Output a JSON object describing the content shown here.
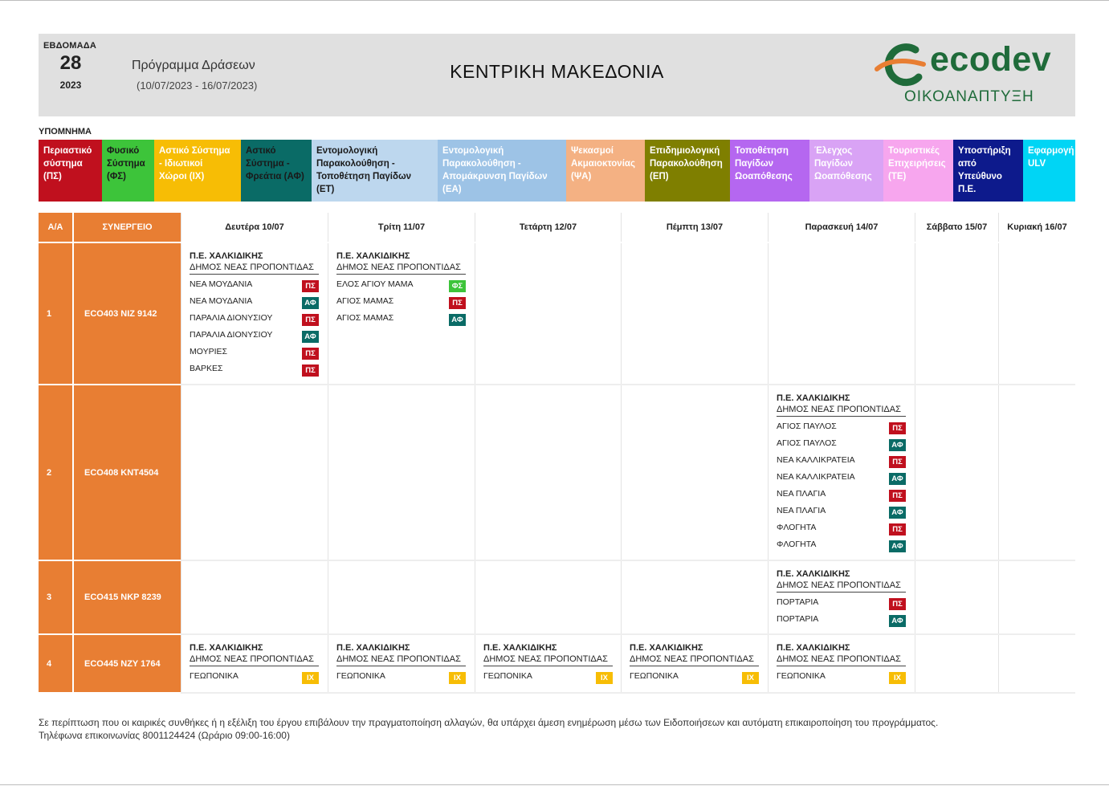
{
  "header": {
    "week_label": "ΕΒΔΟΜΑΔΑ",
    "week_number": "28",
    "year": "2023",
    "program_title": "Πρόγραμμα Δράσεων",
    "program_dates": "(10/07/2023 - 16/07/2023)",
    "region": "ΚΕΝΤΡΙΚΗ ΜΑΚΕΔΟΝΙΑ",
    "logo_text": "ecodev",
    "logo_subtitle": "ΟΙΚΟΑΝΑΠΤΥΞΗ",
    "logo_colors": {
      "green": "#1f6b3a",
      "orange": "#e87e33"
    }
  },
  "legend": {
    "title": "ΥΠΟΜΝΗΜΑ",
    "items": [
      {
        "lines": [
          "Περιαστικό",
          "σύστημα",
          "(ΠΣ)"
        ],
        "color": "#c0101e",
        "text_color": "#ffffff"
      },
      {
        "lines": [
          "Φυσικό",
          "Σύστημα",
          "(ΦΣ)"
        ],
        "color": "#3dc43a",
        "text_color": "#1a1a1a"
      },
      {
        "lines": [
          "Αστικό Σύστημα",
          "- Ιδιωτικοί",
          "Χώροι (ΙΧ)"
        ],
        "color": "#f7bd05",
        "text_color": "#ffffff"
      },
      {
        "lines": [
          "Αστικό",
          "Σύστημα -",
          "Φρεάτια (ΑΦ)"
        ],
        "color": "#0a6b66",
        "text_color": "#1a1a1a"
      },
      {
        "lines": [
          "Εντομολογική",
          "Παρακολούθηση -",
          "Τοποθέτηση Παγίδων",
          "(ΕΤ)"
        ],
        "color": "#bdd7ee",
        "text_color": "#1a1a1a"
      },
      {
        "lines": [
          "Εντομολογική",
          "Παρακολούθηση -",
          "Απομάκρυνση Παγίδων",
          "(ΕΑ)"
        ],
        "color": "#9dc3e6",
        "text_color": "#ffffff"
      },
      {
        "lines": [
          "Ψεκασμοί",
          "Ακμαιοκτονίας",
          "(ΨΑ)"
        ],
        "color": "#f4b183",
        "text_color": "#ffffff"
      },
      {
        "lines": [
          "Επιδημιολογική",
          "Παρακολούθηση",
          "(ΕΠ)"
        ],
        "color": "#7f7f00",
        "text_color": "#ffffff"
      },
      {
        "lines": [
          "Τοποθέτηση",
          "Παγίδων",
          "Ωοαπόθεσης"
        ],
        "color": "#b567f0",
        "text_color": "#ffffff"
      },
      {
        "lines": [
          "Έλεγχος",
          "Παγίδων",
          "Ωοαπόθεσης"
        ],
        "color": "#d9a3f5",
        "text_color": "#ffffff"
      },
      {
        "lines": [
          "Τουριστικές",
          "Επιχειρήσεις",
          "(ΤΕ)"
        ],
        "color": "#f7a6ee",
        "text_color": "#ffffff"
      },
      {
        "lines": [
          "Υποστήριξη",
          "από",
          "Υπεύθυνο",
          "Π.Ε."
        ],
        "color": "#0d1a8c",
        "text_color": "#ffffff"
      },
      {
        "lines": [
          "Εφαρμογή",
          "ULV"
        ],
        "color": "#00d5f5",
        "text_color": "#ffffff"
      }
    ]
  },
  "tag_colors": {
    "ΠΣ": "#c0101e",
    "ΑΦ": "#0a6b66",
    "ΦΣ": "#3dc43a",
    "ΙΧ": "#f7bd05"
  },
  "columns": {
    "aa": "Α/Α",
    "crew": "ΣΥΝΕΡΓΕΙΟ",
    "days": [
      "Δευτέρα 10/07",
      "Τρίτη 11/07",
      "Τετάρτη 12/07",
      "Πέμπτη 13/07",
      "Παρασκευή 14/07",
      "Σάββατο 15/07",
      "Κυριακή 16/07"
    ]
  },
  "rows": [
    {
      "aa": "1",
      "crew": "ECO403  NIZ 9142",
      "cells": [
        {
          "pe": "Π.Ε. ΧΑΛΚΙΔΙΚΗΣ",
          "dimos": "ΔΗΜΟΣ ΝΕΑΣ ΠΡΟΠΟΝΤΙΔΑΣ",
          "entries": [
            {
              "name": "ΝΕΑ ΜΟΥΔΑΝΙΑ",
              "tag": "ΠΣ"
            },
            {
              "name": "ΝΕΑ ΜΟΥΔΑΝΙΑ",
              "tag": "ΑΦ"
            },
            {
              "name": "ΠΑΡΑΛΙΑ ΔΙΟΝΥΣΙΟΥ",
              "tag": "ΠΣ"
            },
            {
              "name": "ΠΑΡΑΛΙΑ ΔΙΟΝΥΣΙΟΥ",
              "tag": "ΑΦ"
            },
            {
              "name": "ΜΟΥΡΙΕΣ",
              "tag": "ΠΣ"
            },
            {
              "name": "ΒΑΡΚΕΣ",
              "tag": "ΠΣ"
            }
          ]
        },
        {
          "pe": "Π.Ε. ΧΑΛΚΙΔΙΚΗΣ",
          "dimos": "ΔΗΜΟΣ ΝΕΑΣ ΠΡΟΠΟΝΤΙΔΑΣ",
          "entries": [
            {
              "name": "ΕΛΟΣ ΑΓΙΟΥ ΜΑΜΑ",
              "tag": "ΦΣ"
            },
            {
              "name": "ΑΓΙΟΣ ΜΑΜΑΣ",
              "tag": "ΠΣ"
            },
            {
              "name": "ΑΓΙΟΣ ΜΑΜΑΣ",
              "tag": "ΑΦ"
            }
          ]
        },
        null,
        null,
        null,
        null,
        null
      ]
    },
    {
      "aa": "2",
      "crew": "ECO408  KNT4504",
      "cells": [
        null,
        null,
        null,
        null,
        {
          "pe": "Π.Ε. ΧΑΛΚΙΔΙΚΗΣ",
          "dimos": "ΔΗΜΟΣ ΝΕΑΣ ΠΡΟΠΟΝΤΙΔΑΣ",
          "entries": [
            {
              "name": "ΑΓΙΟΣ ΠΑΥΛΟΣ",
              "tag": "ΠΣ"
            },
            {
              "name": "ΑΓΙΟΣ ΠΑΥΛΟΣ",
              "tag": "ΑΦ"
            },
            {
              "name": "ΝΕΑ ΚΑΛΛΙΚΡΑΤΕΙΑ",
              "tag": "ΠΣ"
            },
            {
              "name": "ΝΕΑ ΚΑΛΛΙΚΡΑΤΕΙΑ",
              "tag": "ΑΦ"
            },
            {
              "name": "ΝΕΑ ΠΛΑΓΙΑ",
              "tag": "ΠΣ"
            },
            {
              "name": "ΝΕΑ ΠΛΑΓΙΑ",
              "tag": "ΑΦ"
            },
            {
              "name": "ΦΛΟΓΗΤΑ",
              "tag": "ΠΣ"
            },
            {
              "name": "ΦΛΟΓΗΤΑ",
              "tag": "ΑΦ"
            }
          ]
        },
        null,
        null
      ]
    },
    {
      "aa": "3",
      "crew": "ECO415  NKP 8239",
      "cells": [
        null,
        null,
        null,
        null,
        {
          "pe": "Π.Ε. ΧΑΛΚΙΔΙΚΗΣ",
          "dimos": "ΔΗΜΟΣ ΝΕΑΣ ΠΡΟΠΟΝΤΙΔΑΣ",
          "entries": [
            {
              "name": "ΠΟΡΤΑΡΙΑ",
              "tag": "ΠΣ"
            },
            {
              "name": "ΠΟΡΤΑΡΙΑ",
              "tag": "ΑΦ"
            }
          ]
        },
        null,
        null
      ]
    },
    {
      "aa": "4",
      "crew": "ECO445  NZY 1764",
      "cells": [
        {
          "pe": "Π.Ε. ΧΑΛΚΙΔΙΚΗΣ",
          "dimos": "ΔΗΜΟΣ ΝΕΑΣ ΠΡΟΠΟΝΤΙΔΑΣ",
          "entries": [
            {
              "name": "ΓΕΩΠΟΝΙΚΑ",
              "tag": "ΙΧ"
            }
          ]
        },
        {
          "pe": "Π.Ε. ΧΑΛΚΙΔΙΚΗΣ",
          "dimos": "ΔΗΜΟΣ ΝΕΑΣ ΠΡΟΠΟΝΤΙΔΑΣ",
          "entries": [
            {
              "name": "ΓΕΩΠΟΝΙΚΑ",
              "tag": "ΙΧ"
            }
          ]
        },
        {
          "pe": "Π.Ε. ΧΑΛΚΙΔΙΚΗΣ",
          "dimos": "ΔΗΜΟΣ ΝΕΑΣ ΠΡΟΠΟΝΤΙΔΑΣ",
          "entries": [
            {
              "name": "ΓΕΩΠΟΝΙΚΑ",
              "tag": "ΙΧ"
            }
          ]
        },
        {
          "pe": "Π.Ε. ΧΑΛΚΙΔΙΚΗΣ",
          "dimos": "ΔΗΜΟΣ ΝΕΑΣ ΠΡΟΠΟΝΤΙΔΑΣ",
          "entries": [
            {
              "name": "ΓΕΩΠΟΝΙΚΑ",
              "tag": "ΙΧ"
            }
          ]
        },
        {
          "pe": "Π.Ε. ΧΑΛΚΙΔΙΚΗΣ",
          "dimos": "ΔΗΜΟΣ ΝΕΑΣ ΠΡΟΠΟΝΤΙΔΑΣ",
          "entries": [
            {
              "name": "ΓΕΩΠΟΝΙΚΑ",
              "tag": "ΙΧ"
            }
          ]
        },
        null,
        null
      ]
    }
  ],
  "footer": {
    "line1": "Σε περίπτωση που οι καιρικές συνθήκες ή η εξέλιξη του έργου επιβάλουν την πραγματοποίηση αλλαγών, θα υπάρχει άμεση ενημέρωση μέσω των Ειδοποιήσεων και αυτόματη επικαιροποίηση του προγράμματος.",
    "line2": "Τηλέφωνα επικοινωνίας 8001124424 (Ωράριο 09:00-16:00)"
  }
}
